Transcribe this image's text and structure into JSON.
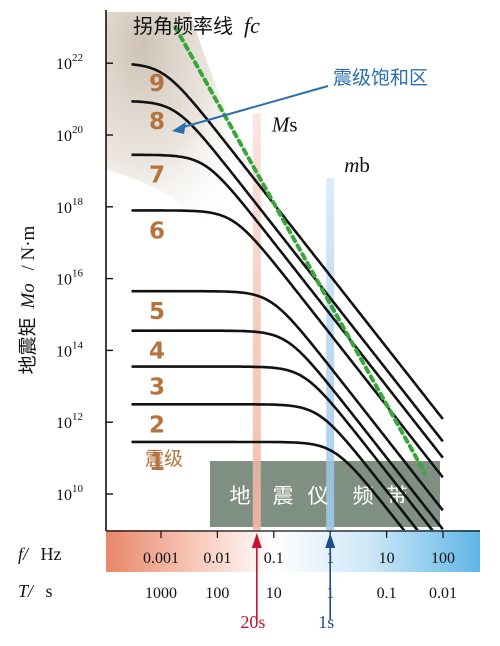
{
  "chart_data": {
    "type": "line",
    "x_scale": "log",
    "y_scale": "log",
    "xlim": [
      0.0002,
      250
    ],
    "ylim": [
      1000000000.0,
      1e+23
    ],
    "ylabel_cn": "地震矩",
    "ylabel_var": "Mo",
    "ylabel_unit": "/ N·m",
    "xlabel_freq_var": "f/",
    "xlabel_freq_unit": "Hz",
    "xlabel_period_var": "T/",
    "xlabel_period_unit": "s",
    "freq_ticks": [
      {
        "value": 0.001,
        "label": "0.001"
      },
      {
        "value": 0.01,
        "label": "0.01"
      },
      {
        "value": 0.1,
        "label": "0.1"
      },
      {
        "value": 1,
        "label": "1"
      },
      {
        "value": 10,
        "label": "10"
      },
      {
        "value": 100,
        "label": "100"
      }
    ],
    "period_ticks": [
      {
        "value": 0.001,
        "label": "1000"
      },
      {
        "value": 0.01,
        "label": "100"
      },
      {
        "value": 0.1,
        "label": "10"
      },
      {
        "value": 1,
        "label": "1"
      },
      {
        "value": 10,
        "label": "0.1"
      },
      {
        "value": 100,
        "label": "0.01"
      }
    ],
    "y_ticks": [
      {
        "exp": 10,
        "base": "10",
        "sup": "10"
      },
      {
        "exp": 12,
        "base": "10",
        "sup": "12"
      },
      {
        "exp": 14,
        "base": "10",
        "sup": "14"
      },
      {
        "exp": 16,
        "base": "10",
        "sup": "16"
      },
      {
        "exp": 18,
        "base": "10",
        "sup": "18"
      },
      {
        "exp": 20,
        "base": "10",
        "sup": "20"
      },
      {
        "exp": 22,
        "base": "10",
        "sup": "22"
      }
    ],
    "series": [
      {
        "name": "1",
        "plateau_log_mo": 11.45,
        "corner_freq": 1.2,
        "x_end": 100
      },
      {
        "name": "2",
        "plateau_log_mo": 12.5,
        "corner_freq": 0.62,
        "x_end": 100
      },
      {
        "name": "3",
        "plateau_log_mo": 13.55,
        "corner_freq": 0.34,
        "x_end": 100
      },
      {
        "name": "4",
        "plateau_log_mo": 14.55,
        "corner_freq": 0.17,
        "x_end": 100
      },
      {
        "name": "5",
        "plateau_log_mo": 15.65,
        "corner_freq": 0.088,
        "x_end": 100
      },
      {
        "name": "6",
        "plateau_log_mo": 17.9,
        "corner_freq": 0.019,
        "x_end": 100
      },
      {
        "name": "7",
        "plateau_log_mo": 19.45,
        "corner_freq": 0.006,
        "x_end": 100
      },
      {
        "name": "8",
        "plateau_log_mo": 20.95,
        "corner_freq": 0.0018,
        "x_end": 100
      },
      {
        "name": "9",
        "plateau_log_mo": 22.0,
        "corner_freq": 0.0011,
        "x_end": 100
      }
    ],
    "magnitude_caption": "震级",
    "corner_frequency_line": {
      "label_cn": "拐角频率线",
      "label_var": "fc",
      "color": "#3aa53a",
      "points": [
        [
          0.0018,
          23.0
        ],
        [
          100,
          10.3
        ]
      ]
    },
    "saturation_zone": {
      "label": "震级饱和区",
      "color": "#2a6fb0",
      "fill": "#d9cfc3"
    },
    "ms_band": {
      "label_var": "M",
      "label_sub": "s",
      "freq": 0.05,
      "top_log_mo": 20.6,
      "color": "#f3b7a7"
    },
    "mb_band": {
      "label_var": "m",
      "label_sub": "b",
      "freq": 1.0,
      "top_log_mo": 18.8,
      "color": "#9fc9ea"
    },
    "seismometer_band": {
      "label_chars": [
        "地",
        "震",
        "仪",
        "频",
        "带"
      ],
      "freq_range": [
        0.004,
        60
      ],
      "fill": "#7f8f82"
    },
    "period_markers": [
      {
        "label": "20s",
        "freq": 0.05,
        "color": "#c8102e"
      },
      {
        "label": "1s",
        "freq": 1.0,
        "color": "#1f4e8c"
      }
    ],
    "axis_gradient": {
      "left": "#e8866a",
      "mid": "#ffffff",
      "right": "#5fb6e6"
    },
    "grid": false
  }
}
